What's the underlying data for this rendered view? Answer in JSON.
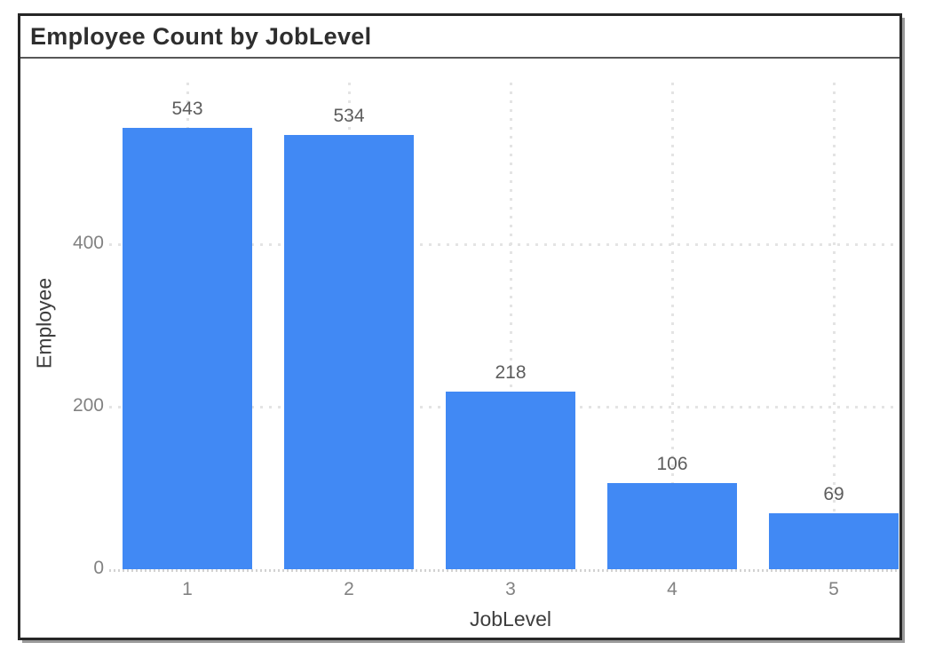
{
  "window": {
    "title": "Employee Count by JobLevel"
  },
  "colors": {
    "bar": "#4189F4",
    "title_text": "#2e2e2e",
    "value_label": "#5d5d5d",
    "tick_label": "#828282",
    "axis_title": "#3d3d3d",
    "gridline": "#e4e4e4",
    "baseline": "#d2d2d2",
    "window_border": "#262626",
    "title_separator": "#575757",
    "shadow": "#9a9a9a",
    "background": "#ffffff"
  },
  "chart_data": {
    "type": "bar",
    "title": "Employee Count by JobLevel",
    "categories": [
      "1",
      "2",
      "3",
      "4",
      "5"
    ],
    "values": [
      543,
      534,
      218,
      106,
      69
    ],
    "data_labels": [
      "543",
      "534",
      "218",
      "106",
      "69"
    ],
    "xlabel": "JobLevel",
    "ylabel": "Employee",
    "yticks": [
      0,
      200,
      400
    ],
    "ylim": [
      0,
      600
    ],
    "grid": "dotted",
    "grid_orientation": "both",
    "legend_position": "none",
    "bar_color": "#4189F4"
  }
}
